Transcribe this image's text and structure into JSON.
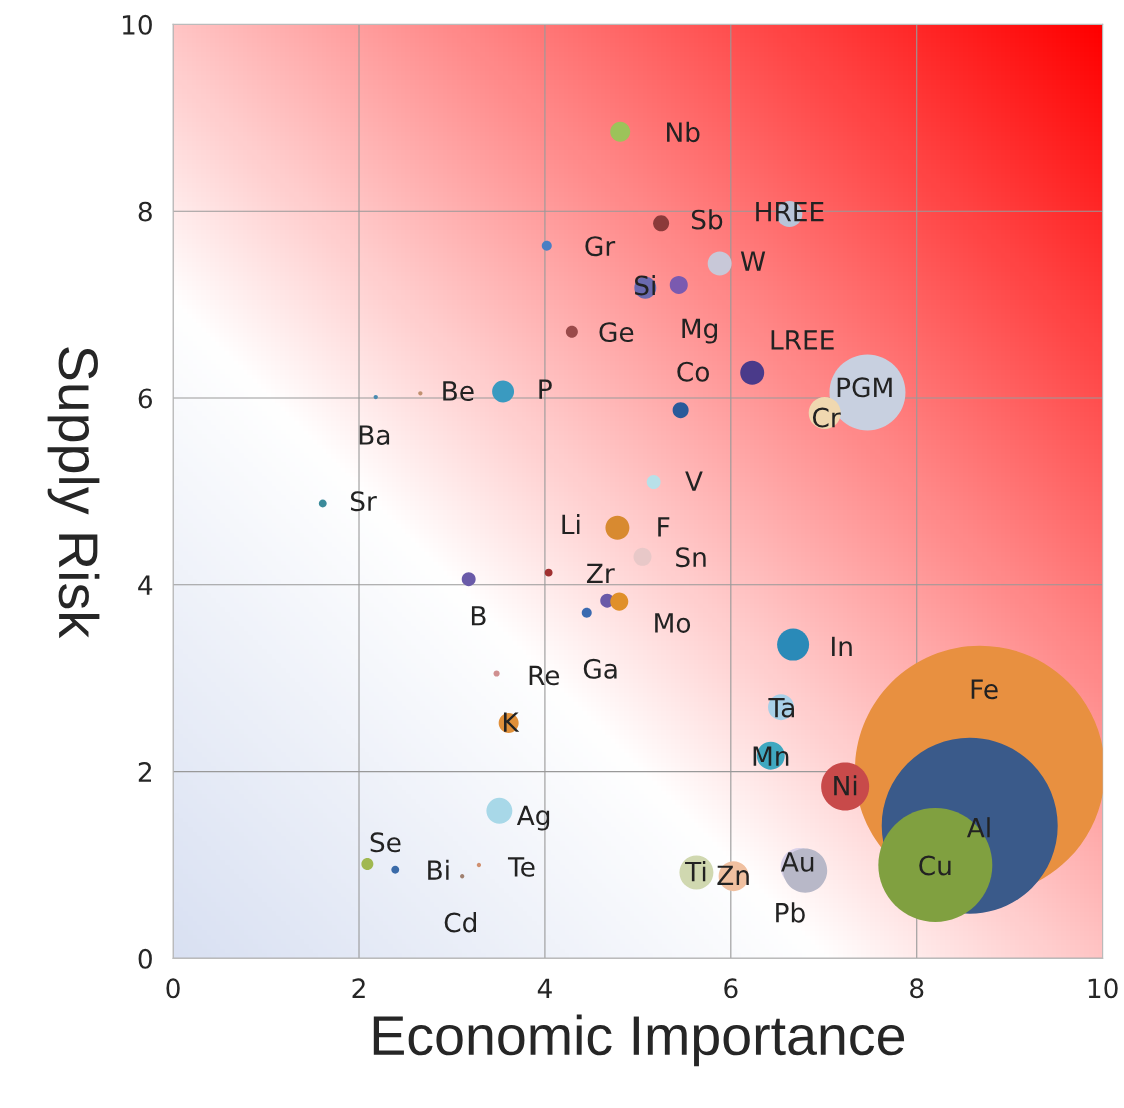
{
  "chart_data": {
    "type": "bubble",
    "xlabel": "Economic Importance",
    "ylabel": "Supply Risk",
    "xlim": [
      0,
      10
    ],
    "ylim": [
      0,
      10
    ],
    "xticks": [
      0,
      2,
      4,
      6,
      8,
      10
    ],
    "yticks": [
      0,
      2,
      4,
      6,
      8,
      10
    ],
    "grid": true,
    "x": [
      4.81,
      5.25,
      6.63,
      4.02,
      5.88,
      5.08,
      5.44,
      4.29,
      6.23,
      7.47,
      7.01,
      5.46,
      3.55,
      2.66,
      2.18,
      1.61,
      5.17,
      4.78,
      5.05,
      4.04,
      3.18,
      4.67,
      4.8,
      4.45,
      6.67,
      3.48,
      3.61,
      6.54,
      8.68,
      6.43,
      7.23,
      8.57,
      3.51,
      8.2,
      6.74,
      6.8,
      5.63,
      6.03,
      2.09,
      2.39,
      3.29,
      3.11
    ],
    "values": [
      8.85,
      7.87,
      7.97,
      7.63,
      7.44,
      7.18,
      7.21,
      6.71,
      6.27,
      6.06,
      5.84,
      5.87,
      6.07,
      6.05,
      6.01,
      4.87,
      5.1,
      4.61,
      4.3,
      4.13,
      4.06,
      3.83,
      3.82,
      3.7,
      3.36,
      3.05,
      2.52,
      2.69,
      2.01,
      2.17,
      1.84,
      1.42,
      1.58,
      1.0,
      0.98,
      0.94,
      0.92,
      0.88,
      1.01,
      0.95,
      1.0,
      0.88
    ],
    "sizes": [
      0.0064,
      0.0041,
      0.0108,
      0.0016,
      0.0092,
      0.0077,
      0.0052,
      0.0023,
      0.0092,
      0.0924,
      0.0164,
      0.0041,
      0.0077,
      0.0003,
      0.0003,
      0.001,
      0.0031,
      0.0092,
      0.0052,
      0.001,
      0.0031,
      0.0031,
      0.0052,
      0.0016,
      0.0164,
      0.0006,
      0.0064,
      0.0108,
      1,
      0.0125,
      0.0369,
      0.4956,
      0.0108,
      0.2079,
      0.0231,
      0.031,
      0.0185,
      0.0144,
      0.0023,
      0.001,
      0.0003,
      0.0003
    ],
    "colors": [
      "#9cc35a",
      "#8b3a3a",
      "#b8c4d8",
      "#4a7fc4",
      "#c8c8d8",
      "#6a6ab0",
      "#7a5ab0",
      "#9a4a4a",
      "#4a3a8a",
      "#c8d0e0",
      "#f0d8b0",
      "#2a5a9a",
      "#3a9ac0",
      "#c09070",
      "#4a8ab0",
      "#3a8a9a",
      "#b8e0e8",
      "#d88a30",
      "#e8c8c8",
      "#a03030",
      "#6a5aa8",
      "#6a5aa8",
      "#e0902a",
      "#3a6ab0",
      "#2a8ab8",
      "#d09090",
      "#e0903a",
      "#a8d0e8",
      "#e89040",
      "#40a8c0",
      "#c84a4a",
      "#3a5a8a",
      "#a8d8e8",
      "#80a040",
      "#d8d0e8",
      "#b8b8c8",
      "#d0d8b0",
      "#f0c0a0",
      "#a0b850",
      "#3a6aa8",
      "#d09070",
      "#a08070"
    ],
    "annotations": [
      {
        "text": "Nb",
        "x": 4.81,
        "y": 8.85
      },
      {
        "text": "Sb",
        "x": 5.25,
        "y": 7.87
      },
      {
        "text": "HREE",
        "x": 6.63,
        "y": 7.97
      },
      {
        "text": "Gr",
        "x": 4.02,
        "y": 7.63
      },
      {
        "text": "W",
        "x": 5.88,
        "y": 7.44
      },
      {
        "text": "Si",
        "x": 5.08,
        "y": 7.18
      },
      {
        "text": "Mg",
        "x": 5.44,
        "y": 7.21
      },
      {
        "text": "Ge",
        "x": 4.29,
        "y": 6.71
      },
      {
        "text": "LREE",
        "x": 6.23,
        "y": 6.27
      },
      {
        "text": "PGM",
        "x": 7.47,
        "y": 6.06
      },
      {
        "text": "Cr",
        "x": 7.01,
        "y": 5.84
      },
      {
        "text": "Co",
        "x": 5.46,
        "y": 5.87
      },
      {
        "text": "P",
        "x": 3.55,
        "y": 6.07
      },
      {
        "text": "Be",
        "x": 2.66,
        "y": 6.05
      },
      {
        "text": "Ba",
        "x": 2.18,
        "y": 6.01
      },
      {
        "text": "Sr",
        "x": 1.61,
        "y": 4.87
      },
      {
        "text": "V",
        "x": 5.17,
        "y": 5.1
      },
      {
        "text": "F",
        "x": 4.78,
        "y": 4.61
      },
      {
        "text": "Sn",
        "x": 5.05,
        "y": 4.3
      },
      {
        "text": "Li",
        "x": 4.04,
        "y": 4.13
      },
      {
        "text": "B",
        "x": 3.18,
        "y": 4.06
      },
      {
        "text": "Zr",
        "x": 4.67,
        "y": 3.83
      },
      {
        "text": "Mo",
        "x": 4.8,
        "y": 3.82
      },
      {
        "text": "Ga",
        "x": 4.45,
        "y": 3.7
      },
      {
        "text": "In",
        "x": 6.67,
        "y": 3.36
      },
      {
        "text": "Re",
        "x": 3.48,
        "y": 3.05
      },
      {
        "text": "K",
        "x": 3.61,
        "y": 2.52
      },
      {
        "text": "Ta",
        "x": 6.54,
        "y": 2.69
      },
      {
        "text": "Fe",
        "x": 8.68,
        "y": 2.01
      },
      {
        "text": "Mn",
        "x": 6.43,
        "y": 2.17
      },
      {
        "text": "Ni",
        "x": 7.23,
        "y": 1.84
      },
      {
        "text": "Al",
        "x": 8.57,
        "y": 1.42
      },
      {
        "text": "Ag",
        "x": 3.51,
        "y": 1.58
      },
      {
        "text": "Cu",
        "x": 8.2,
        "y": 1.0
      },
      {
        "text": "Au",
        "x": 6.74,
        "y": 0.98
      },
      {
        "text": "Pb",
        "x": 6.8,
        "y": 0.94
      },
      {
        "text": "Ti",
        "x": 5.63,
        "y": 0.92
      },
      {
        "text": "Zn",
        "x": 6.03,
        "y": 0.88
      },
      {
        "text": "Se",
        "x": 2.09,
        "y": 1.01
      },
      {
        "text": "Bi",
        "x": 2.39,
        "y": 0.95
      },
      {
        "text": "Te",
        "x": 3.29,
        "y": 1.0
      },
      {
        "text": "Cd",
        "x": 3.11,
        "y": 0.88
      }
    ]
  }
}
